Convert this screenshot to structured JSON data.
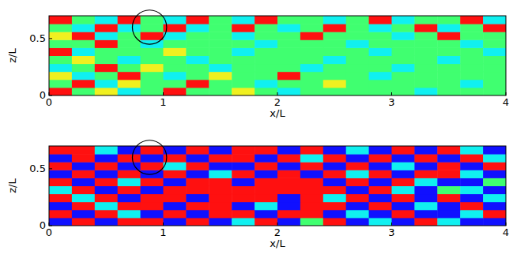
{
  "chart_data": [
    {
      "type": "heatmap",
      "xlabel": "x/L",
      "ylabel": "z/L",
      "xlim": [
        0,
        4
      ],
      "ylim": [
        0,
        0.7
      ],
      "xticks": [
        0,
        1,
        2,
        3,
        4
      ],
      "yticks": [
        0,
        0.5
      ],
      "clim": [
        0,
        4
      ],
      "circle": {
        "x": 0.88,
        "y": 0.6,
        "r": 0.15
      },
      "cells": [
        [
          4,
          2,
          3,
          1,
          2,
          4,
          2,
          2,
          3,
          2,
          1,
          2,
          2,
          2,
          2,
          2,
          1,
          2,
          2,
          2
        ],
        [
          2,
          4,
          1,
          3,
          2,
          2,
          4,
          2,
          2,
          1,
          2,
          2,
          3,
          2,
          2,
          2,
          2,
          2,
          1,
          2
        ],
        [
          3,
          1,
          2,
          4,
          2,
          1,
          2,
          3,
          2,
          2,
          4,
          2,
          2,
          2,
          1,
          2,
          2,
          2,
          2,
          2
        ],
        [
          1,
          2,
          4,
          2,
          3,
          2,
          2,
          1,
          2,
          2,
          2,
          1,
          2,
          2,
          2,
          1,
          2,
          2,
          2,
          2
        ],
        [
          2,
          3,
          2,
          1,
          2,
          2,
          1,
          2,
          2,
          2,
          2,
          2,
          1,
          2,
          2,
          2,
          2,
          1,
          2,
          2
        ],
        [
          4,
          1,
          2,
          2,
          2,
          3,
          2,
          2,
          1,
          2,
          2,
          2,
          2,
          2,
          1,
          2,
          2,
          2,
          2,
          1
        ],
        [
          2,
          2,
          4,
          2,
          1,
          2,
          2,
          2,
          2,
          1,
          2,
          2,
          2,
          1,
          2,
          2,
          2,
          2,
          1,
          2
        ],
        [
          3,
          4,
          1,
          2,
          4,
          1,
          2,
          2,
          1,
          2,
          2,
          4,
          2,
          2,
          2,
          1,
          2,
          4,
          2,
          2
        ],
        [
          2,
          1,
          4,
          1,
          2,
          4,
          1,
          2,
          4,
          2,
          1,
          2,
          4,
          2,
          1,
          2,
          4,
          1,
          2,
          4
        ],
        [
          4,
          2,
          1,
          4,
          2,
          1,
          4,
          2,
          1,
          4,
          2,
          2,
          1,
          2,
          4,
          1,
          2,
          2,
          4,
          1
        ]
      ]
    },
    {
      "type": "heatmap",
      "xlabel": "x/L",
      "ylabel": "z/L",
      "xlim": [
        0,
        4
      ],
      "ylim": [
        0,
        0.7
      ],
      "xticks": [
        0,
        1,
        2,
        3,
        4
      ],
      "yticks": [
        0,
        0.5
      ],
      "clim": [
        0,
        4
      ],
      "circle": {
        "x": 0.88,
        "y": 0.6,
        "r": 0.15
      },
      "cells": [
        [
          0,
          4,
          0,
          4,
          4,
          0,
          4,
          0,
          1,
          4,
          0,
          2,
          4,
          0,
          1,
          0,
          4,
          1,
          0,
          0
        ],
        [
          4,
          0,
          4,
          1,
          0,
          4,
          0,
          4,
          4,
          0,
          4,
          4,
          0,
          1,
          0,
          4,
          0,
          0,
          1,
          4
        ],
        [
          0,
          4,
          1,
          4,
          4,
          0,
          4,
          4,
          0,
          1,
          0,
          4,
          4,
          0,
          4,
          0,
          1,
          0,
          4,
          0
        ],
        [
          4,
          1,
          4,
          0,
          4,
          4,
          0,
          4,
          4,
          4,
          0,
          4,
          1,
          4,
          0,
          4,
          0,
          4,
          0,
          1
        ],
        [
          1,
          4,
          0,
          4,
          0,
          4,
          4,
          4,
          4,
          4,
          4,
          4,
          4,
          0,
          4,
          1,
          0,
          2,
          1,
          0
        ],
        [
          4,
          0,
          4,
          1,
          4,
          0,
          4,
          4,
          0,
          4,
          4,
          4,
          0,
          4,
          0,
          4,
          1,
          0,
          0,
          2
        ],
        [
          0,
          4,
          0,
          4,
          0,
          4,
          0,
          1,
          4,
          0,
          4,
          0,
          4,
          1,
          4,
          0,
          4,
          4,
          1,
          0
        ],
        [
          4,
          0,
          4,
          0,
          4,
          1,
          4,
          0,
          0,
          4,
          0,
          4,
          0,
          4,
          0,
          1,
          0,
          4,
          0,
          4
        ],
        [
          0,
          4,
          0,
          4,
          0,
          4,
          0,
          4,
          4,
          0,
          4,
          1,
          4,
          0,
          4,
          0,
          4,
          0,
          4,
          1
        ],
        [
          4,
          4,
          1,
          0,
          4,
          0,
          4,
          0,
          4,
          4,
          0,
          4,
          0,
          1,
          0,
          4,
          0,
          4,
          1,
          0
        ]
      ]
    }
  ]
}
